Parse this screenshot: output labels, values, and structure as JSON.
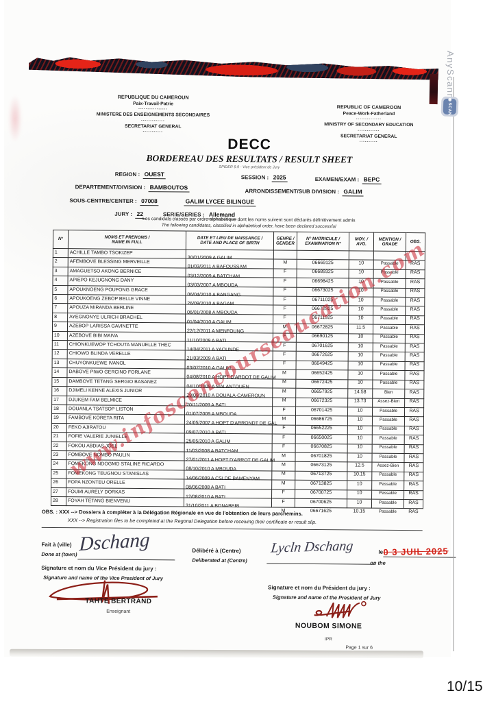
{
  "scanner": {
    "watermark_text": "AnyScanner",
    "badge_label": "SCAN",
    "page_indicator": "10/15"
  },
  "site_watermark": "www.infosconcourseducation.com",
  "header": {
    "left": {
      "line1": "REPUBLIQUE DU CAMEROUN",
      "line2": "Paix-Travail-Patrie",
      "line3": "MINISTERE DES ENSEIGNEMENTS SECONDAIRES",
      "line4": "SECRETARIAT GENERAL"
    },
    "right": {
      "line1": "REPUBLIC OF CAMEROON",
      "line2": "Peace-Work-Fatherland",
      "line3": "MINISTRY OF SECONDARY EDUCATION",
      "line4": "SECRETARIAT GENERAL"
    },
    "title": "DECC",
    "subtitle": "BORDEREAU DES RESULTATS / RESULT SHEET",
    "subtitle_note": "SPIDER 9.9 - Vice président de Jury"
  },
  "info": {
    "region_label": "REGION :",
    "region": "OUEST",
    "session_label": "SESSION :",
    "session": "2025",
    "exam_label": "EXAMEN/EXAM :",
    "exam": "BEPC",
    "department_label": "DEPARTEMENT/DIVISION :",
    "department": "BAMBOUTOS",
    "subdivision_label": "ARRONDISSEMENT/SUB DIVISION :",
    "subdivision": "GALIM",
    "center_label": "SOUS-CENTRE/CENTER :",
    "center_code": "07008",
    "center_name": "GALIM LYCEE BILINGUE",
    "jury_label": "JURY :",
    "jury": "22",
    "series_label": "SERIE/SERIES :",
    "series": "Allemand"
  },
  "notice": {
    "fr": "Les candidats classés par ordre alphabétique dont les noms suivent sont déclarés définitivement admis",
    "en": "The following candidates, classified in alphabetical order, have been declared successful"
  },
  "table": {
    "headers": [
      {
        "fr": "N°",
        "en": ""
      },
      {
        "fr": "NOMS ET PRENOMS /",
        "en": "NAME IN FULL"
      },
      {
        "fr": "DATE ET LIEU DE NAISSANCE /",
        "en": "DATE AND PLACE OF BIRTH"
      },
      {
        "fr": "GENRE /",
        "en": "GENDER"
      },
      {
        "fr": "N° MATRICULE /",
        "en": "EXAMINATION N°"
      },
      {
        "fr": "MOY. /",
        "en": "AVG."
      },
      {
        "fr": "MENTION /",
        "en": "GRADE"
      },
      {
        "fr": "OBS.",
        "en": ""
      }
    ],
    "rows": [
      [
        "1",
        "ACHILLE TAMBO TSOKIZEP",
        "30/01/2009 A GALIM",
        "M",
        "06669125",
        "10",
        "Passable",
        "RAS"
      ],
      [
        "2",
        "AFEMBOVE BLESSING MERVEILLE",
        "01/03/2011 A BAFOUSSAM",
        "F",
        "06689325",
        "10",
        "Passable",
        "RAS"
      ],
      [
        "3",
        "AMAGUETSO AKONG BERNICE",
        "03/12/2009 A BATCHAM",
        "F",
        "06698425",
        "10",
        "Passable",
        "RAS"
      ],
      [
        "4",
        "APIEPO KEJUGNONG DANY",
        "03/03/2007 A MBOUDA",
        "F",
        "06673025",
        "10",
        "Passable",
        "RAS"
      ],
      [
        "5",
        "APOUKNOENG POUFONG GRACE",
        "06/04/2010 A BANGANG",
        "F",
        "06711025",
        "10",
        "Passable",
        "RAS"
      ],
      [
        "6",
        "APOUKOENG ZEBOP BELLE VINNE",
        "26/09/2010 A BAGAM",
        "F",
        "06672925",
        "10",
        "Passable",
        "RAS"
      ],
      [
        "7",
        "APOUZA MIRANDA BERLINE",
        "06/01/2008 A MBOUDA",
        "F",
        "06711925",
        "10",
        "Passable",
        "RAS"
      ],
      [
        "8",
        "AYEGNONYE ULRICH BRACHEL",
        "01/04/2010 A GALIM",
        "M",
        "06672825",
        "11.5",
        "Passable",
        "RAS"
      ],
      [
        "9",
        "AZEBOP LARISSA GAVINETTE",
        "22/12/2011 A MENFOUNG",
        "F",
        "06690125",
        "10",
        "Passable",
        "RAS"
      ],
      [
        "10",
        "AZEBOVE BIBI MAIVA",
        "11/10/2009 A BATI",
        "F",
        "06701625",
        "10",
        "Passable",
        "RAS"
      ],
      [
        "11",
        "CHIONKUEWOP TCHOUTA MANUELLE THEC",
        "14/04/2011 A YAOUNDE",
        "F",
        "06672625",
        "10",
        "Passable",
        "RAS"
      ],
      [
        "12",
        "CHIOWO BLINDA VERELLE",
        "21/03/2009 A BATI",
        "F",
        "06649425",
        "10",
        "Passable",
        "RAS"
      ],
      [
        "13",
        "CHUYONKUEWE IVANOL",
        "03/07/2010 A GALIM",
        "M",
        "06652425",
        "10",
        "Passable",
        "RAS"
      ],
      [
        "14",
        "DABOVE PIWO GERCINO FORLANE",
        "04/08/2010 A HOPT D'ARDOT DE GALIM",
        "M",
        "06672425",
        "10",
        "Passable",
        "RAS"
      ],
      [
        "15",
        "DAMBOVE TETANG SERGIO BASANEZ",
        "04/10/2009 A MALANTOUEN",
        "M",
        "06657925",
        "14.58",
        "Bien",
        "RAS"
      ],
      [
        "16",
        "DJIMELI KENNE ALEXIS JUNIOR",
        "29/09/2010 A DOUALA-CAMEROUN",
        "M",
        "06672325",
        "13.73",
        "Assez-Bien",
        "RAS"
      ],
      [
        "17",
        "DJUKEM FAM BELMICE",
        "20/11/2009 A BATI",
        "F",
        "06701425",
        "10",
        "Passable",
        "RAS"
      ],
      [
        "18",
        "DOUANLA TSATSOP LISTON",
        "01/07/2009 A MBOUDA",
        "M",
        "06686725",
        "10",
        "Passable",
        "RAS"
      ],
      [
        "19",
        "FAMBOVE KORETA RITA",
        "24/05/2007 A HOPT D'ARRONDT DE GAL",
        "F",
        "06652225",
        "10",
        "Passable",
        "RAS"
      ],
      [
        "20",
        "FEKO AJIRATOU",
        "09/07/2010 A BATI",
        "F",
        "06650025",
        "10",
        "Passable",
        "RAS"
      ],
      [
        "21",
        "FOFIE VALERIE JUNIELLE",
        "25/05/2010 A GALIM",
        "F",
        "06670825",
        "10",
        "Passable",
        "RAS"
      ],
      [
        "22",
        "FOKOU ABDIAS JOEL",
        "11/03/2008 A BATCHAM",
        "M",
        "06701825",
        "10",
        "Passable",
        "RAS"
      ],
      [
        "23",
        "FOMBOVE NOMBO PAULIN",
        "27/01/2011 A HOPT D'ARROT DE GALIM",
        "M",
        "06673125",
        "12.5",
        "Assez-Bien",
        "RAS"
      ],
      [
        "24",
        "FOMEKONG NDOGMO STALINE RICARDO",
        "08/10/2010 A MBOUDA",
        "M",
        "06713725",
        "10.15",
        "Passable",
        "RAS"
      ],
      [
        "25",
        "FOMEKONG TEUGNOU STANISLAS",
        "14/06/2009 A CSI DE BAMENYAM",
        "M",
        "06713825",
        "10",
        "Passable",
        "RAS"
      ],
      [
        "26",
        "FOPA NZONTEU ORELLE",
        "08/06/2008 A BATI",
        "F",
        "06700725",
        "10",
        "Passable",
        "RAS"
      ],
      [
        "27",
        "FOUMI AURELY DORKAS",
        "12/08/2010 A BATI",
        "F",
        "06700625",
        "10",
        "Passable",
        "RAS"
      ],
      [
        "28",
        "FOYAH TETANG BIENVENU",
        "31/10/2011 A BONABERI",
        "M",
        "06671625",
        "10.15",
        "Passable",
        "RAS"
      ]
    ]
  },
  "obs_note": {
    "fr": "OBS. : XXX --> Dossiers à compléter à la Délégation Régionale en vue de l'obtention de leurs parchemins.",
    "en": "XXX --> Registration files to be completed at the Regonal Delegation before receiving their certificate or result slip."
  },
  "footer": {
    "done_at_fr": "Fait à (ville)",
    "done_at_en": "Done at (town)",
    "done_at_value": "Dschang",
    "deliberated_fr": "Délibéré à (Centre)",
    "deliberated_en": "Deliberated at (Centre)",
    "deliberated_value": "Lycln Dschang",
    "date_fr": "le",
    "date_en": "on the",
    "date_stamp": "0 3  JUIL  2025",
    "vp_sig_fr": "Signature et nom du Vice Président du jury :",
    "vp_sig_en": "Signature and name of the Vice President of Jury",
    "p_sig_fr": "Signature et nom  du Président du jury :",
    "p_sig_en": "Signature and name of the President of Jury",
    "vp_name": "TAHTE BERTRAND",
    "vp_title": "Enseignant",
    "p_name": "NOUBOM SIMONE",
    "p_title": "IPR",
    "page_note": "Page 1 sur 6"
  }
}
